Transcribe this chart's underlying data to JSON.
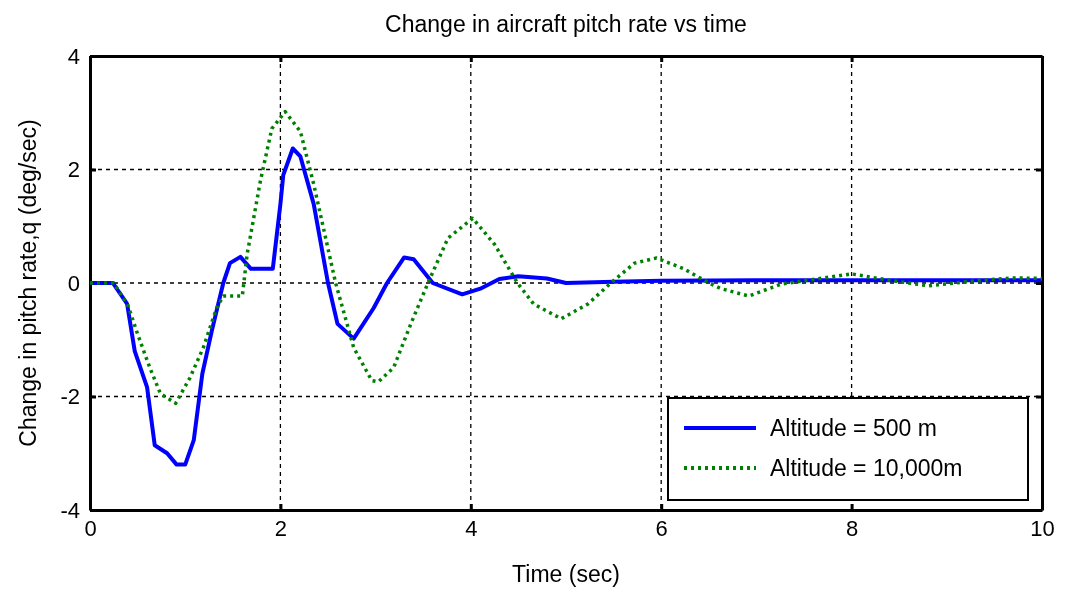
{
  "chart_data": {
    "type": "line",
    "title": "Change in aircraft pitch rate  vs time",
    "xlabel": "Time  (sec)",
    "ylabel": "Change in pitch rate,q  (deg/sec)",
    "xlim": [
      0,
      10
    ],
    "xticks": [
      0,
      2,
      4,
      6,
      8,
      10
    ],
    "ylim": [
      -4,
      4
    ],
    "yticks": [
      -4,
      -2,
      0,
      2,
      4
    ],
    "grid": true,
    "legend": "bottom right",
    "series": [
      {
        "name": "Altitude = 500 m",
        "color": "#0000ff",
        "line_style": "solid",
        "x": [
          0,
          0.24,
          0.39,
          0.47,
          0.6,
          0.68,
          0.81,
          0.91,
          1.0,
          1.09,
          1.18,
          1.28,
          1.4,
          1.47,
          1.58,
          1.69,
          1.92,
          2.0,
          2.03,
          2.13,
          2.21,
          2.35,
          2.5,
          2.6,
          2.77,
          2.98,
          3.12,
          3.3,
          3.4,
          3.6,
          3.91,
          4.1,
          4.3,
          4.5,
          4.8,
          5.0,
          5.5,
          6.0,
          7.0,
          8.0,
          9.0,
          10.0
        ],
        "values": [
          0,
          0,
          -0.37,
          -1.2,
          -1.84,
          -2.86,
          -3.0,
          -3.2,
          -3.2,
          -2.77,
          -1.6,
          -0.84,
          0,
          0.35,
          0.46,
          0.25,
          0.25,
          1.39,
          1.9,
          2.37,
          2.23,
          1.39,
          0,
          -0.72,
          -0.98,
          -0.44,
          0,
          0.45,
          0.42,
          0,
          -0.2,
          -0.1,
          0.07,
          0.12,
          0.08,
          0,
          0.02,
          0.04,
          0.05,
          0.05,
          0.05,
          0.05
        ]
      },
      {
        "name": "Altitude = 10,000m",
        "color": "#008000",
        "line_style": "dotted",
        "x": [
          0,
          0.25,
          0.4,
          0.5,
          0.63,
          0.74,
          0.9,
          1.05,
          1.19,
          1.33,
          1.4,
          1.6,
          1.65,
          1.79,
          1.91,
          2.05,
          2.21,
          2.35,
          2.58,
          2.77,
          2.96,
          3.03,
          3.19,
          3.37,
          3.55,
          3.76,
          4.02,
          4.25,
          4.49,
          4.66,
          4.95,
          5.23,
          5.47,
          5.72,
          5.95,
          6.24,
          6.5,
          6.63,
          6.92,
          7.26,
          8.0,
          8.39,
          8.81,
          9.26,
          9.68,
          10.0
        ],
        "values": [
          0,
          0,
          -0.4,
          -0.9,
          -1.5,
          -1.95,
          -2.12,
          -1.67,
          -1.14,
          -0.44,
          -0.23,
          -0.23,
          0.5,
          1.8,
          2.72,
          3.02,
          2.67,
          1.74,
          0,
          -1.14,
          -1.72,
          -1.74,
          -1.49,
          -0.72,
          0,
          0.79,
          1.14,
          0.68,
          0,
          -0.37,
          -0.63,
          -0.37,
          0,
          0.35,
          0.44,
          0.25,
          0,
          -0.1,
          -0.23,
          -0.02,
          0.16,
          0.05,
          -0.05,
          0.03,
          0.09,
          0.08
        ]
      }
    ]
  }
}
